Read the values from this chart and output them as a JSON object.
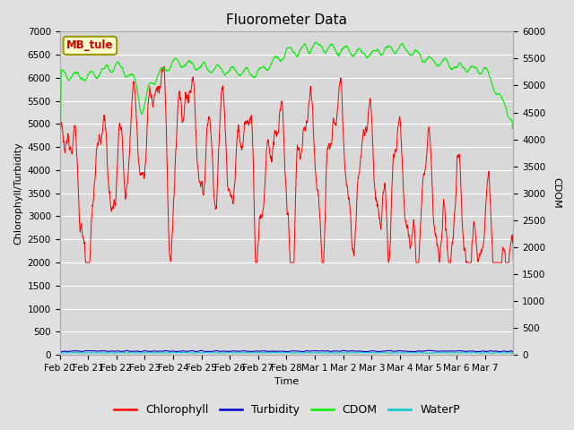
{
  "title": "Fluorometer Data",
  "xlabel": "Time",
  "ylabel_left": "Chlorophyll/Turbidity",
  "ylabel_right": "CDOM",
  "annotation": "MB_tule",
  "ylim_left": [
    0,
    7000
  ],
  "ylim_right": [
    0,
    6000
  ],
  "yticks_left": [
    0,
    500,
    1000,
    1500,
    2000,
    2500,
    3000,
    3500,
    4000,
    4500,
    5000,
    5500,
    6000,
    6500,
    7000
  ],
  "yticks_right": [
    0,
    500,
    1000,
    1500,
    2000,
    2500,
    3000,
    3500,
    4000,
    4500,
    5000,
    5500,
    6000
  ],
  "colors": {
    "chlorophyll": "#ff0000",
    "turbidity": "#0000cc",
    "cdom": "#00ee00",
    "waterp": "#00cccc",
    "annotation_bg": "#ffffcc",
    "annotation_border": "#999900",
    "annotation_text": "#cc0000",
    "fig_bg": "#e0e0e0",
    "plot_bg": "#d8d8d8",
    "grid": "#ffffff"
  },
  "legend_labels": [
    "Chlorophyll",
    "Turbidity",
    "CDOM",
    "WaterP"
  ],
  "xtick_labels": [
    "Feb 20",
    "Feb 21",
    "Feb 22",
    "Feb 23",
    "Feb 24",
    "Feb 25",
    "Feb 26",
    "Feb 27",
    "Feb 28",
    "Mar 1",
    "Mar 2",
    "Mar 3",
    "Mar 4",
    "Mar 5",
    "Mar 6",
    "Mar 7"
  ],
  "title_fontsize": 11,
  "label_fontsize": 8,
  "tick_fontsize": 7.5,
  "legend_fontsize": 9
}
